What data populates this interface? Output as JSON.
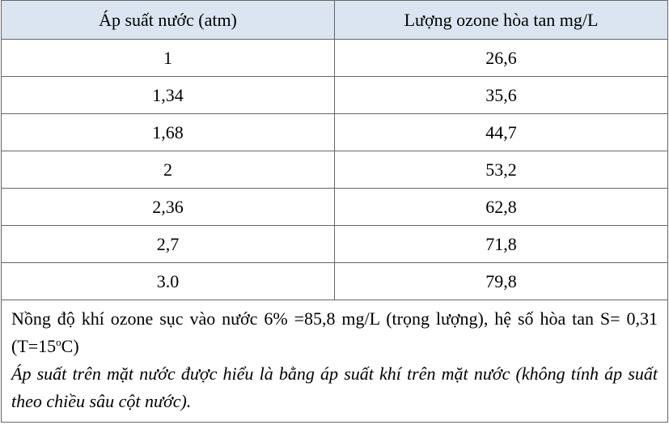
{
  "table": {
    "header": [
      "Áp suất nước (atm)",
      "Lượng ozone hòa tan mg/L"
    ],
    "rows": [
      [
        "1",
        "26,6"
      ],
      [
        "1,34",
        "35,6"
      ],
      [
        "1,68",
        "44,7"
      ],
      [
        "2",
        "53,2"
      ],
      [
        "2,36",
        "62,8"
      ],
      [
        "2,7",
        "71,8"
      ],
      [
        "3.0",
        "79,8"
      ]
    ],
    "note": {
      "text": "Nồng độ khí ozone sục vào nước 6% =85,8 mg/L (trọng lượng), hệ số hòa tan S= 0,31 (T=15",
      "superscript": "o",
      "tail": "C)"
    },
    "italic_note": "Áp suất trên mặt nước được hiểu là bằng áp suất khí trên mặt nước (không tính áp suất theo chiều sâu cột nước)."
  }
}
